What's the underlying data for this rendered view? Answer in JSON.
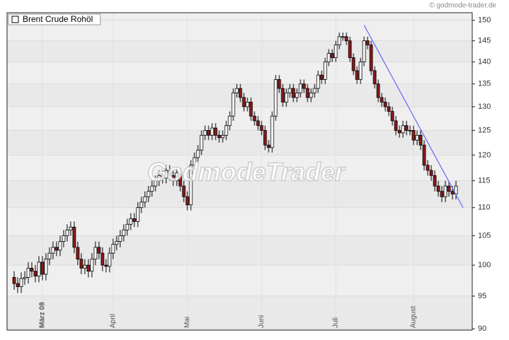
{
  "chart_data": {
    "type": "candlestick",
    "copyright": "© godmode-trader.de",
    "watermark": "GodmodeTrader",
    "log_scale": true,
    "grid": true,
    "ylim": [
      89.8,
      151.9
    ],
    "yticks": [
      90,
      95,
      100,
      105,
      110,
      115,
      120,
      125,
      130,
      135,
      140,
      145,
      150
    ],
    "categories": [
      null,
      null,
      null,
      null,
      null,
      null,
      null,
      null,
      "März 08",
      null,
      null,
      null,
      null,
      null,
      null,
      null,
      null,
      null,
      null,
      null,
      null,
      null,
      null,
      null,
      null,
      null,
      null,
      null,
      "April",
      null,
      null,
      null,
      null,
      null,
      null,
      null,
      null,
      null,
      null,
      null,
      null,
      null,
      null,
      null,
      null,
      null,
      null,
      null,
      null,
      "Mai",
      null,
      null,
      null,
      null,
      null,
      null,
      null,
      null,
      null,
      null,
      null,
      null,
      null,
      null,
      null,
      null,
      null,
      null,
      null,
      null,
      "Juni",
      null,
      null,
      null,
      null,
      null,
      null,
      null,
      null,
      null,
      null,
      null,
      null,
      null,
      null,
      null,
      null,
      null,
      null,
      null,
      null,
      "Juli",
      null,
      null,
      null,
      null,
      null,
      null,
      null,
      null,
      null,
      null,
      null,
      null,
      null,
      null,
      null,
      null,
      null,
      null,
      null,
      null,
      null,
      "August",
      null,
      null,
      null,
      null,
      null,
      null,
      null,
      null,
      null,
      null,
      null,
      null
    ],
    "series": [
      {
        "name": "Brent Crude Rohöl",
        "up_color": "#ffffff",
        "down_color": "#8b1a1a",
        "open": [
          98,
          97,
          96.5,
          97.8,
          98,
          99.5,
          99,
          98.2,
          100.5,
          98.5,
          101,
          102,
          103,
          102.5,
          104,
          105,
          106,
          106.5,
          103,
          101,
          99.5,
          100,
          99,
          101,
          103,
          102,
          100,
          99.8,
          102,
          103.5,
          104,
          105,
          106,
          107,
          108,
          107.5,
          110,
          111,
          112,
          113,
          114,
          115,
          116,
          115.5,
          117,
          116,
          115,
          116.5,
          114,
          112,
          110.5,
          118,
          119.5,
          121,
          124,
          125,
          124,
          125.5,
          124,
          123.5,
          124,
          126,
          128,
          133,
          134,
          132,
          130,
          131,
          128,
          127,
          126,
          125,
          122,
          121.5,
          128,
          136,
          134,
          131,
          133,
          134,
          132,
          133,
          135,
          134,
          132,
          133,
          134,
          137,
          136,
          140,
          142,
          141,
          144,
          146,
          146,
          145,
          141,
          138,
          136,
          140,
          145,
          144,
          138,
          135,
          132,
          131,
          130,
          129,
          127,
          125,
          124.5,
          126,
          125,
          125,
          123,
          124,
          122,
          118,
          117,
          116,
          114,
          113,
          112,
          114,
          113,
          112.5
        ],
        "high": [
          99,
          98,
          98.8,
          99,
          100.5,
          100.5,
          100,
          101.5,
          101.5,
          102,
          103,
          104,
          104,
          105,
          106,
          107,
          107.5,
          107.5,
          104,
          102,
          101,
          101,
          102,
          104,
          104,
          103,
          101,
          103,
          104.5,
          105,
          106,
          107,
          108,
          109,
          109,
          111,
          112,
          113,
          114,
          115,
          116,
          117,
          117,
          118,
          118,
          117,
          117.5,
          117.5,
          115,
          113,
          119,
          120.5,
          122,
          125,
          126,
          126,
          126.5,
          126.5,
          125,
          125,
          127,
          129,
          134,
          135,
          135,
          133,
          132,
          132,
          129,
          128,
          127,
          126,
          123,
          129,
          137,
          137,
          135,
          134,
          135,
          135,
          134,
          136,
          136,
          135,
          134,
          135,
          138,
          138,
          141,
          143,
          143,
          145,
          147,
          147,
          147,
          146,
          142,
          139,
          141,
          146,
          146,
          145,
          139,
          136,
          133,
          132,
          131,
          130,
          128,
          126,
          127,
          127,
          126,
          126,
          125,
          125,
          123,
          119,
          118,
          117,
          115,
          114,
          115,
          115,
          114,
          115
        ],
        "low": [
          96,
          95.5,
          95.5,
          96.8,
          97,
          98,
          97.2,
          97.2,
          97.5,
          97.5,
          100,
          101,
          101.5,
          101.5,
          103,
          104,
          105,
          102,
          100,
          98.5,
          98.5,
          98,
          98,
          100,
          101,
          99,
          98.8,
          98.8,
          101,
          102.5,
          103,
          104,
          105,
          106,
          106.5,
          106.5,
          109,
          110,
          111,
          112,
          113,
          114,
          114.5,
          114.5,
          115,
          114,
          114,
          113,
          111,
          109.5,
          109.5,
          117,
          118.5,
          120,
          123,
          123,
          123,
          123,
          122.5,
          122.5,
          123,
          125,
          127,
          132,
          131,
          129,
          129,
          127,
          126,
          125,
          124,
          121,
          120.5,
          120.5,
          127,
          133,
          130,
          130,
          132,
          131,
          131,
          132,
          133,
          131,
          131,
          132,
          133,
          135,
          135,
          139,
          140,
          140,
          143,
          145,
          144,
          140,
          137,
          135,
          135,
          139,
          143,
          137,
          134,
          131,
          130,
          129,
          128,
          126,
          124,
          123.5,
          123.5,
          124,
          124,
          122,
          122,
          121,
          117,
          116,
          115,
          113,
          112,
          111,
          111,
          112,
          111.5,
          111.5
        ],
        "close": [
          97,
          96.5,
          97.8,
          98,
          99.5,
          99,
          98.2,
          100.5,
          98.5,
          101,
          102,
          103,
          102.5,
          104,
          105,
          106,
          106.5,
          103,
          101,
          99.5,
          100,
          99,
          101,
          103,
          102,
          100,
          99.8,
          102,
          103.5,
          104,
          105,
          106,
          107,
          108,
          107.5,
          110,
          111,
          112,
          113,
          114,
          115,
          116,
          115.5,
          117,
          116,
          115,
          116.5,
          114,
          112,
          110.5,
          118,
          119.5,
          121,
          124,
          125,
          124,
          125.5,
          124,
          123.5,
          124,
          126,
          128,
          133,
          134,
          132,
          130,
          131,
          128,
          127,
          126,
          125,
          122,
          121.5,
          128,
          136,
          134,
          131,
          133,
          134,
          132,
          133,
          135,
          134,
          132,
          133,
          134,
          137,
          136,
          140,
          142,
          141,
          144,
          146,
          146,
          145,
          141,
          138,
          136,
          140,
          145,
          144,
          138,
          135,
          132,
          131,
          130,
          129,
          127,
          125,
          124.5,
          126,
          125,
          125,
          123,
          124,
          122,
          118,
          117,
          116,
          114,
          113,
          112,
          114,
          113,
          112.5,
          114
        ]
      }
    ],
    "trendline": {
      "color": "#6f6fff",
      "x": [
        99,
        127
      ],
      "y": [
        148.8,
        110
      ]
    }
  }
}
